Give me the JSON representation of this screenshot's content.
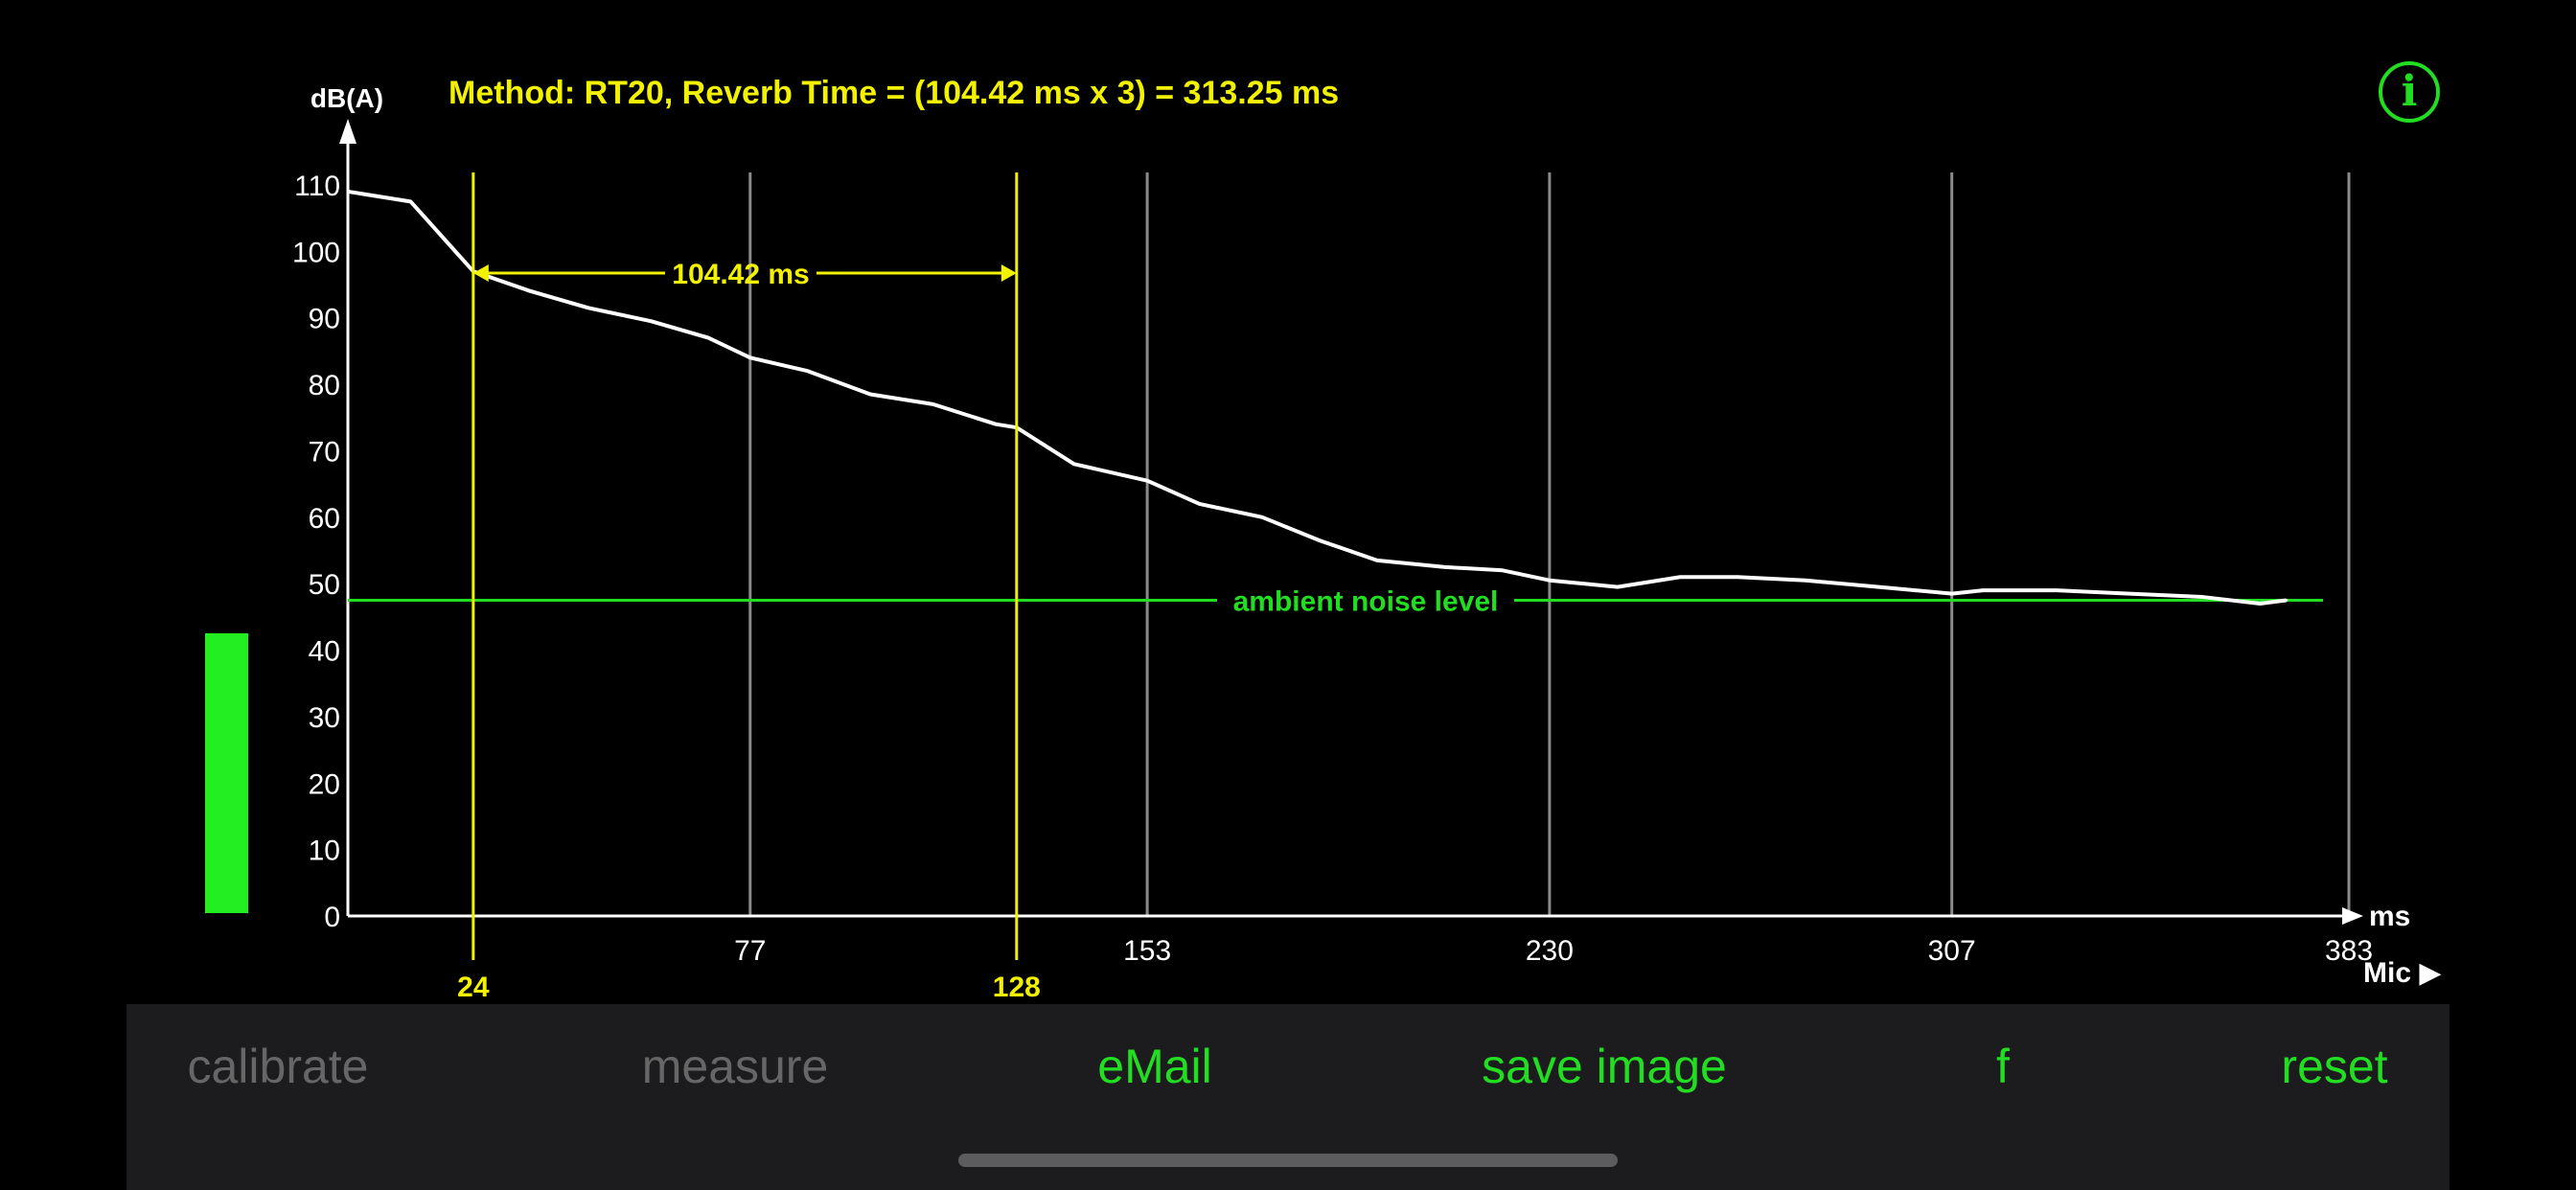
{
  "header": {
    "method_text": "Method: RT20, Reverb Time = (104.42 ms x 3) = 313.25 ms"
  },
  "info_button": {
    "icon": "info-icon",
    "glyph": "i"
  },
  "mic": {
    "label": "Mic ▶"
  },
  "level_meter": {
    "fraction": 0.42,
    "color": "#22ee22"
  },
  "colors": {
    "curve": "#ffffff",
    "marker": "#f2f200",
    "ambient": "#22dd22",
    "grid": "#8a8a8a",
    "axis": "#ffffff",
    "button_active": "#22dd22",
    "button_disabled": "#666666"
  },
  "toolbar": {
    "buttons": [
      {
        "label": "calibrate",
        "enabled": false
      },
      {
        "label": "measure",
        "enabled": false
      },
      {
        "label": "eMail",
        "enabled": true
      },
      {
        "label": "save image",
        "enabled": true
      },
      {
        "label": "f",
        "enabled": true
      },
      {
        "label": "reset",
        "enabled": true
      }
    ]
  },
  "chart_data": {
    "type": "line",
    "ylabel": "dB(A)",
    "xlabel": "ms",
    "ylim": [
      0,
      110
    ],
    "yticks": [
      0,
      10,
      20,
      30,
      40,
      50,
      60,
      70,
      80,
      90,
      100,
      110
    ],
    "xlim": [
      0,
      383
    ],
    "xticks": [
      77,
      153,
      230,
      307,
      383
    ],
    "grid": true,
    "series": [
      {
        "x": [
          0,
          12,
          24,
          35,
          46,
          58,
          69,
          77,
          88,
          100,
          112,
          124,
          128,
          139,
          153,
          163,
          175,
          186,
          197,
          210,
          221,
          230,
          243,
          255,
          266,
          279,
          293,
          307,
          313,
          327,
          341,
          355,
          366,
          371
        ],
        "y": [
          109,
          107.5,
          97,
          94,
          91.5,
          89.5,
          87,
          84,
          82,
          78.5,
          77,
          74,
          73.5,
          68,
          65.5,
          62,
          60,
          56.5,
          53.5,
          52.5,
          52,
          50.5,
          49.5,
          51,
          51,
          50.5,
          49.5,
          48.5,
          49,
          49,
          48.5,
          48,
          47,
          47.5
        ]
      }
    ],
    "ambient_noise": {
      "label": "ambient noise level",
      "value": 47.5
    },
    "markers": [
      {
        "x": 24,
        "label": "24"
      },
      {
        "x": 128,
        "label": "128"
      }
    ],
    "interval": {
      "x1": 24,
      "x2": 128,
      "y": 97.5,
      "label": "104.42 ms"
    }
  }
}
